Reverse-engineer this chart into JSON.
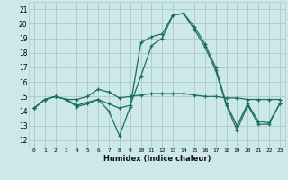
{
  "xlabel": "Humidex (Indice chaleur)",
  "xlim": [
    -0.5,
    23.5
  ],
  "ylim": [
    11.5,
    21.5
  ],
  "yticks": [
    12,
    13,
    14,
    15,
    16,
    17,
    18,
    19,
    20,
    21
  ],
  "xticks": [
    0,
    1,
    2,
    3,
    4,
    5,
    6,
    7,
    8,
    9,
    10,
    11,
    12,
    13,
    14,
    15,
    16,
    17,
    18,
    19,
    20,
    21,
    22,
    23
  ],
  "bg_color": "#cce8e8",
  "grid_color": "#b0cccc",
  "line_color": "#1a6e60",
  "curves": [
    [
      14.2,
      14.8,
      15.0,
      14.8,
      14.3,
      14.5,
      14.8,
      14.0,
      12.3,
      14.3,
      18.7,
      19.1,
      19.3,
      20.6,
      20.7,
      19.8,
      18.6,
      17.0,
      14.5,
      13.0,
      14.5,
      13.3,
      13.2,
      14.5
    ],
    [
      14.2,
      14.8,
      15.0,
      14.8,
      14.8,
      15.0,
      15.5,
      15.3,
      14.9,
      15.0,
      15.1,
      15.2,
      15.2,
      15.2,
      15.2,
      15.1,
      15.0,
      15.0,
      14.9,
      14.9,
      14.8,
      14.8,
      14.8,
      14.8
    ],
    [
      14.2,
      14.8,
      15.0,
      14.8,
      14.4,
      14.6,
      14.8,
      14.5,
      14.2,
      14.4,
      16.4,
      18.5,
      19.0,
      20.6,
      20.7,
      19.6,
      18.4,
      16.8,
      14.4,
      12.7,
      14.4,
      13.1,
      13.1,
      14.5
    ]
  ]
}
